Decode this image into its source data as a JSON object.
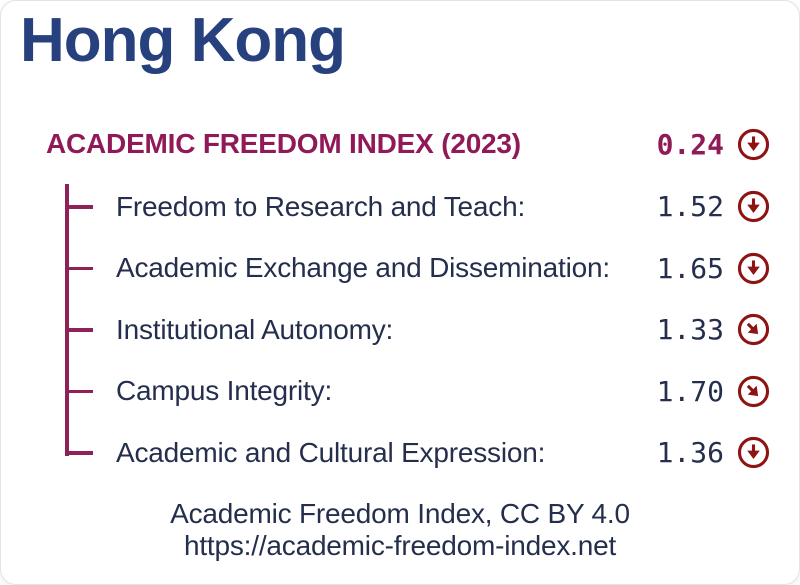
{
  "title": "Hong Kong",
  "colors": {
    "title_navy": "#27417e",
    "text_navy": "#252f4d",
    "magenta": "#901a58",
    "tree": "#8e2157",
    "arrow_red": "#8e1313",
    "card_border": "#e3e3e6"
  },
  "header": {
    "label": "ACADEMIC FREEDOM INDEX (2023)",
    "value": "0.24",
    "trend": "down"
  },
  "rows": [
    {
      "label": "Freedom to Research and Teach:",
      "value": "1.52",
      "trend": "down"
    },
    {
      "label": "Academic Exchange and Dissemination:",
      "value": "1.65",
      "trend": "down"
    },
    {
      "label": "Institutional Autonomy:",
      "value": "1.33",
      "trend": "down-right"
    },
    {
      "label": "Campus Integrity:",
      "value": "1.70",
      "trend": "down-right"
    },
    {
      "label": "Academic and Cultural Expression:",
      "value": "1.36",
      "trend": "down"
    }
  ],
  "footer": {
    "line1": "Academic Freedom Index, CC BY 4.0",
    "line2": "https://academic-freedom-index.net"
  },
  "chart_data": {
    "type": "table",
    "title": "ACADEMIC FREEDOM INDEX (2023)",
    "subject": "Hong Kong",
    "overall_index": 0.24,
    "categories": [
      "Freedom to Research and Teach",
      "Academic Exchange and Dissemination",
      "Institutional Autonomy",
      "Campus Integrity",
      "Academic and Cultural Expression"
    ],
    "values": [
      1.52,
      1.65,
      1.33,
      1.7,
      1.36
    ],
    "trends": [
      "down",
      "down",
      "down-right",
      "down-right",
      "down"
    ],
    "value_range": [
      0,
      4
    ],
    "attribution": "Academic Freedom Index, CC BY 4.0",
    "source_url": "https://academic-freedom-index.net"
  }
}
